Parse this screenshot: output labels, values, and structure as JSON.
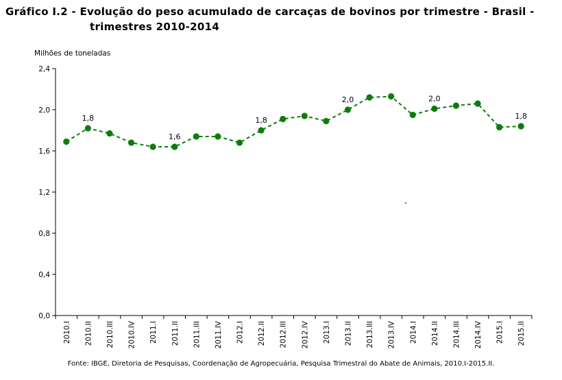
{
  "title": {
    "line1": "Gráfico I.2 - Evolução do peso acumulado de carcaças de bovinos por trimestre - Brasil -",
    "line2": "trimestres 2010-2014"
  },
  "source": "Fonte: IBGE, Diretoria de Pesquisas, Coordenação de Agropecuária, Pesquisa Trimestral do Abate de Animais, 2010.I-2015.II.",
  "colors": {
    "series": "#0b7d0b",
    "axis": "#000000"
  },
  "chart_data": {
    "type": "line",
    "ylabel": "Milhões de toneladas",
    "ylim": [
      0,
      2.4
    ],
    "yticks": [
      "0,0",
      "0,4",
      "0,8",
      "1,2",
      "1,6",
      "2,0",
      "2,4"
    ],
    "grid": false,
    "line_style": "dashed",
    "categories": [
      "2010.I",
      "2010.II",
      "2010.III",
      "2010.IV",
      "2011.I",
      "2011.II",
      "2011.III",
      "2011.IV",
      "2012.I",
      "2012.II",
      "2012.III",
      "2012.IV",
      "2013.I",
      "2013.II",
      "2013.III",
      "2013.IV",
      "2014.I",
      "2014.II",
      "2014.III",
      "2014.IV",
      "2015.I",
      "2015.II"
    ],
    "series": [
      {
        "values": [
          1.69,
          1.82,
          1.77,
          1.68,
          1.64,
          1.64,
          1.74,
          1.74,
          1.68,
          1.8,
          1.91,
          1.94,
          1.89,
          2.0,
          2.12,
          2.13,
          1.95,
          2.01,
          2.04,
          2.06,
          1.83,
          1.84
        ]
      }
    ],
    "data_labels": [
      {
        "category": "2010.II",
        "text": "1,8"
      },
      {
        "category": "2011.II",
        "text": "1,6"
      },
      {
        "category": "2012.II",
        "text": "1,8"
      },
      {
        "category": "2013.II",
        "text": "2,0"
      },
      {
        "category": "2014.II",
        "text": "2,0"
      },
      {
        "category": "2015.II",
        "text": "1,8"
      }
    ]
  }
}
